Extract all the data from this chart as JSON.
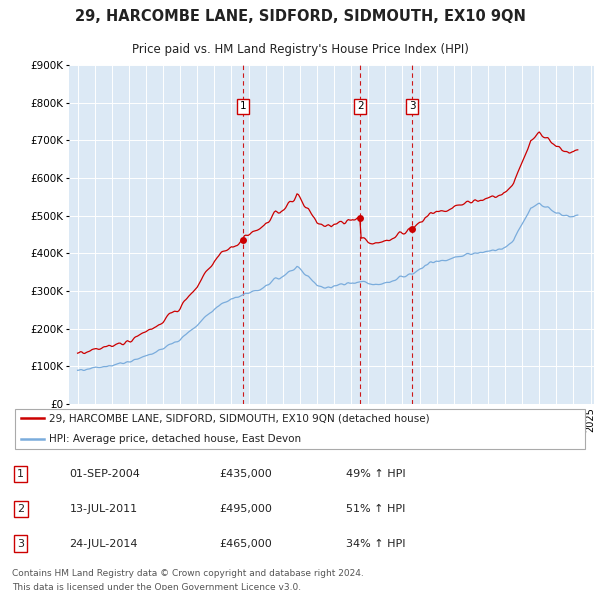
{
  "title": "29, HARCOMBE LANE, SIDFORD, SIDMOUTH, EX10 9QN",
  "subtitle": "Price paid vs. HM Land Registry's House Price Index (HPI)",
  "red_label": "29, HARCOMBE LANE, SIDFORD, SIDMOUTH, EX10 9QN (detached house)",
  "blue_label": "HPI: Average price, detached house, East Devon",
  "footer_line1": "Contains HM Land Registry data © Crown copyright and database right 2024.",
  "footer_line2": "This data is licensed under the Open Government Licence v3.0.",
  "transactions": [
    {
      "num": 1,
      "date": "01-SEP-2004",
      "price": "£435,000",
      "pct": "49% ↑ HPI",
      "year": 2004.67,
      "value": 435000
    },
    {
      "num": 2,
      "date": "13-JUL-2011",
      "price": "£495,000",
      "pct": "51% ↑ HPI",
      "year": 2011.54,
      "value": 495000
    },
    {
      "num": 3,
      "date": "24-JUL-2014",
      "price": "£465,000",
      "pct": "34% ↑ HPI",
      "year": 2014.56,
      "value": 465000
    }
  ],
  "background_color": "#ffffff",
  "plot_bg_color": "#dce9f5",
  "red_color": "#cc0000",
  "blue_color": "#7aacdc",
  "grid_color": "#ffffff",
  "ylim": [
    0,
    900000
  ],
  "ytick_values": [
    0,
    100000,
    200000,
    300000,
    400000,
    500000,
    600000,
    700000,
    800000,
    900000
  ],
  "ytick_labels": [
    "£0",
    "£100K",
    "£200K",
    "£300K",
    "£400K",
    "£500K",
    "£600K",
    "£700K",
    "£800K",
    "£900K"
  ],
  "xlim_start": 1994.5,
  "xlim_end": 2025.2
}
